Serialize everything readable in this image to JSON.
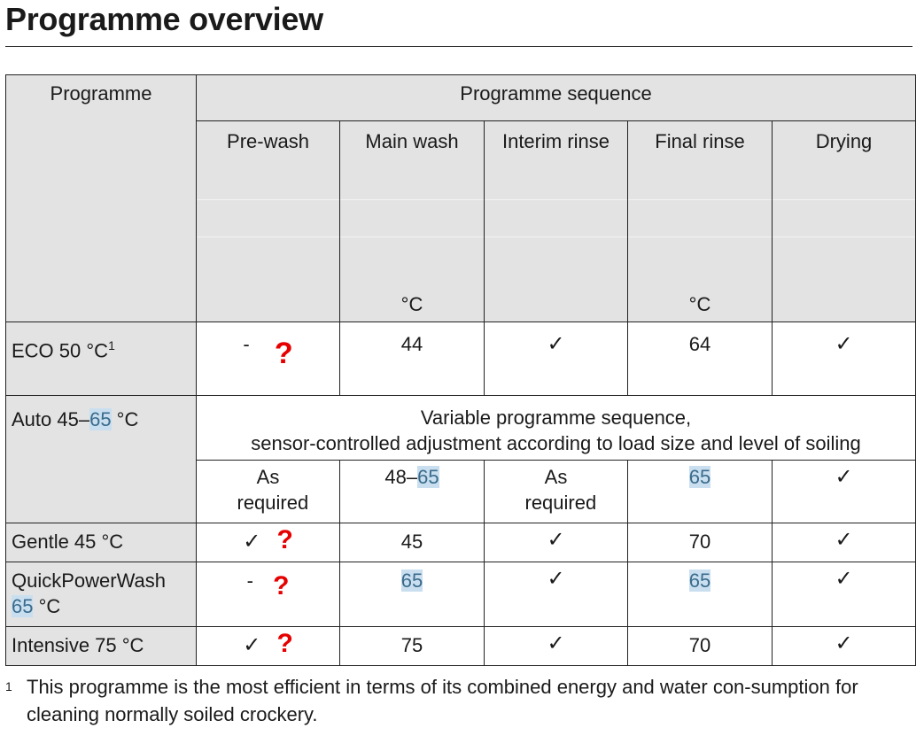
{
  "title": "Programme overview",
  "table": {
    "col_programme": "Programme",
    "col_sequence": "Programme sequence",
    "sub_headers": [
      {
        "label": "Pre-wash",
        "unit": ""
      },
      {
        "label": "Main wash",
        "unit": "°C"
      },
      {
        "label": "Interim rinse",
        "unit": ""
      },
      {
        "label": "Final rinse",
        "unit": "°C"
      },
      {
        "label": "Drying",
        "unit": ""
      }
    ],
    "rows": {
      "eco": {
        "name": "ECO 50 °C",
        "footnote_ref": "1",
        "prewash": "-",
        "prewash_flag": "?",
        "main_wash": "44",
        "interim_rinse": "✓",
        "final_rinse": "64",
        "drying": "✓"
      },
      "auto": {
        "name_pre": "Auto 45–",
        "name_hl": "65",
        "name_post": " °C",
        "variable_line1": "Variable programme sequence,",
        "variable_line2": "sensor-controlled adjustment according to load size and level of soiling",
        "prewash": "As required",
        "main_wash_pre": "48–",
        "main_wash_hl": "65",
        "interim_rinse": "As required",
        "final_rinse_hl": "65",
        "drying": "✓"
      },
      "gentle": {
        "name": "Gentle 45 °C",
        "prewash": "✓",
        "prewash_flag": "?",
        "main_wash": "45",
        "interim_rinse": "✓",
        "final_rinse": "70",
        "drying": "✓"
      },
      "quick": {
        "name_line1": "QuickPowerWash",
        "name_hl": "65",
        "name_post": " °C",
        "prewash": "-",
        "prewash_flag": "?",
        "main_wash_hl": "65",
        "interim_rinse": "✓",
        "final_rinse_hl": "65",
        "drying": "✓"
      },
      "intensive": {
        "name": "Intensive 75 °C",
        "prewash": "✓",
        "prewash_flag": "?",
        "main_wash": "75",
        "interim_rinse": "✓",
        "final_rinse": "70",
        "drying": "✓"
      }
    }
  },
  "footnote": {
    "mark": "1",
    "text": "This programme is the most efficient in terms of its combined energy and water con-sumption for cleaning normally soiled crockery."
  },
  "colors": {
    "header_bg": "#e3e3e3",
    "flag_red": "#e60000",
    "highlight": "#c9dff0"
  }
}
